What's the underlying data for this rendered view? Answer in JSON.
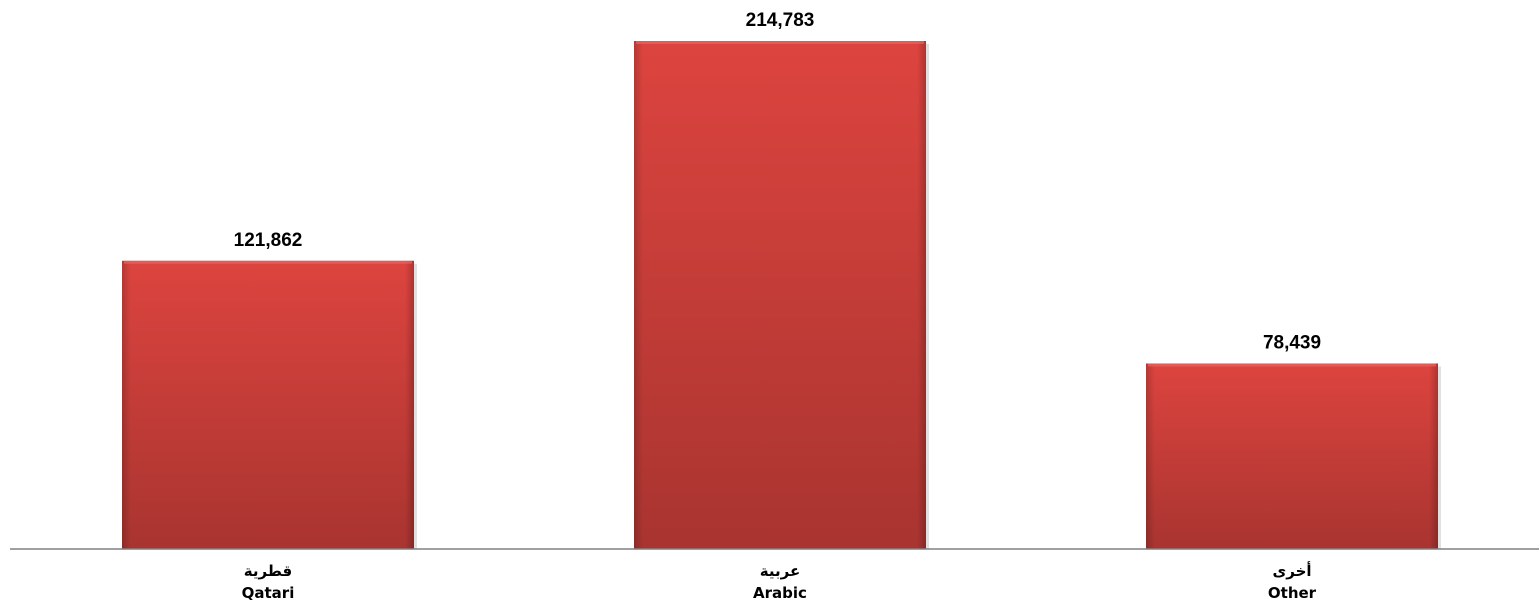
{
  "chart_data": {
    "type": "bar",
    "categories": [
      {
        "ar": "قطرية",
        "en": "Qatari"
      },
      {
        "ar": "عربية",
        "en": "Arabic"
      },
      {
        "ar": "أخرى",
        "en": "Other"
      }
    ],
    "values": [
      121862,
      214783,
      78439
    ],
    "value_labels": [
      "121,862",
      "214,783",
      "78,439"
    ],
    "title": "",
    "xlabel": "",
    "ylabel": "",
    "ylim": [
      0,
      214783
    ],
    "grid": false,
    "legend": "none",
    "colors": {
      "bar": "#d9413c",
      "bar_dark": "#ae3632",
      "axis": "#808080"
    }
  }
}
